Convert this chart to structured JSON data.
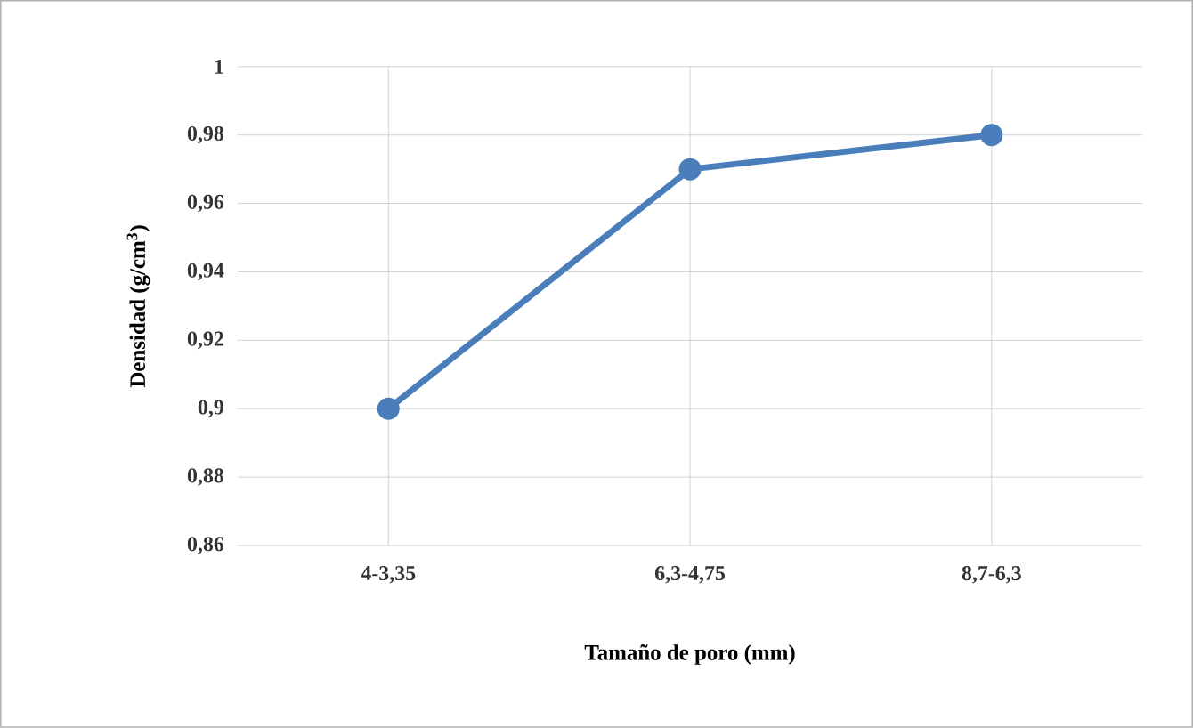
{
  "chart_data": {
    "type": "line",
    "xlabel": "Tamaño de poro (mm)",
    "ylabel": "Densidad (g/cm$^{3}$)",
    "categories": [
      "4-3,35",
      "6,3-4,75",
      "8,7-6,3"
    ],
    "series": [
      {
        "color": "#4a7ebb",
        "values": [
          0.9,
          0.97,
          0.98
        ]
      }
    ],
    "ylim": [
      0.86,
      1
    ],
    "yticks": [
      {
        "value": 0.86,
        "label": "0,86"
      },
      {
        "value": 0.88,
        "label": "0,88"
      },
      {
        "value": 0.9,
        "label": "0,9"
      },
      {
        "value": 0.92,
        "label": "0,92"
      },
      {
        "value": 0.94,
        "label": "0,94"
      },
      {
        "value": 0.96,
        "label": "0,96"
      },
      {
        "value": 0.98,
        "label": "0,98"
      },
      1
    ],
    "grid": true,
    "marker": "circle",
    "line_style": "solid"
  }
}
